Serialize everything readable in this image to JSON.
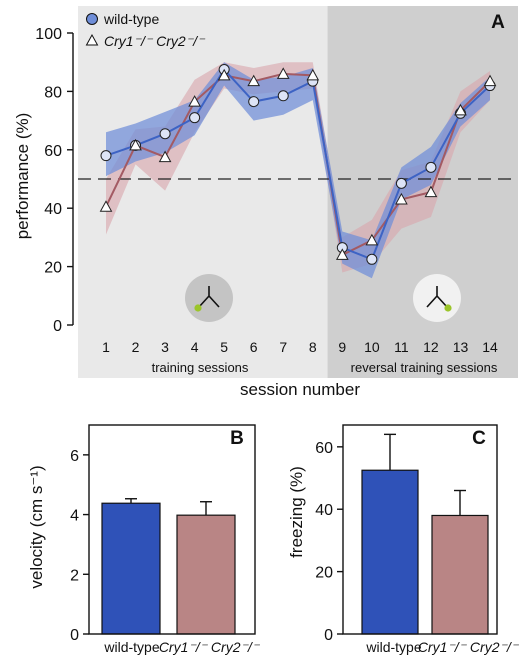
{
  "colors": {
    "wt": "#3d63c4",
    "wt_band": "#6f8ed8",
    "cry": "#a35a63",
    "cry_band": "#d8a7ad",
    "bg_training": "#e9e9e9",
    "bg_reversal": "#cfcfcf",
    "bar_wt": "#2f52b8",
    "bar_cry": "#b98585"
  },
  "chart_data": [
    {
      "type": "line",
      "panel_label": "A",
      "ylabel": "performance (%)",
      "xlabel": "session number",
      "ylim": [
        0,
        100
      ],
      "yticks": [
        0,
        20,
        40,
        60,
        80,
        100
      ],
      "x": [
        1,
        2,
        3,
        4,
        5,
        6,
        7,
        8,
        9,
        10,
        11,
        12,
        13,
        14
      ],
      "chance_line": 50,
      "groups": [
        {
          "label": "training sessions",
          "sessions": [
            1,
            8
          ]
        },
        {
          "label": "reversal training sessions",
          "sessions": [
            9,
            14
          ]
        }
      ],
      "legend": {
        "placement": "top-left"
      },
      "series": [
        {
          "name": "wild-type",
          "marker": "circle",
          "values": [
            58,
            61.5,
            65.5,
            71,
            87.5,
            76.5,
            78.5,
            83.5,
            26.5,
            22.5,
            48.5,
            54,
            72.5,
            82
          ],
          "lower": [
            51,
            56,
            59,
            65,
            82,
            70,
            72,
            77,
            21,
            16,
            43,
            48,
            68,
            77
          ],
          "upper": [
            66,
            69,
            73,
            77,
            90,
            84,
            85,
            88,
            32,
            29,
            54,
            61,
            76,
            85
          ]
        },
        {
          "name": "Cry1⁻/⁻ Cry2⁻/⁻",
          "marker": "triangle",
          "values": [
            40.5,
            61.5,
            57.5,
            76.5,
            85.5,
            83.5,
            86,
            85.5,
            24,
            29,
            43,
            45.5,
            73.5,
            83.5
          ],
          "lower": [
            31,
            55,
            46,
            66,
            81,
            79,
            80,
            81,
            18,
            21,
            33,
            37,
            66,
            77
          ],
          "upper": [
            50,
            67,
            68,
            84,
            90,
            88,
            90,
            90,
            30,
            36,
            53,
            56,
            80,
            87
          ]
        }
      ]
    },
    {
      "type": "bar",
      "panel_label": "B",
      "ylabel": "velocity (cm s⁻¹)",
      "ylim": [
        0,
        7
      ],
      "yticks": [
        0,
        2,
        4,
        6
      ],
      "categories": [
        "wild-type",
        "Cry1⁻/⁻ Cry2⁻/⁻"
      ],
      "values": [
        4.38,
        3.98
      ],
      "errors": [
        0.15,
        0.45
      ]
    },
    {
      "type": "bar",
      "panel_label": "C",
      "ylabel": "freezing (%)",
      "ylim": [
        0,
        67
      ],
      "yticks": [
        0,
        20,
        40,
        60
      ],
      "categories": [
        "wild-type",
        "Cry1⁻/⁻ Cry2⁻/⁻"
      ],
      "values": [
        52.5,
        38
      ],
      "errors": [
        11.5,
        8
      ]
    }
  ]
}
